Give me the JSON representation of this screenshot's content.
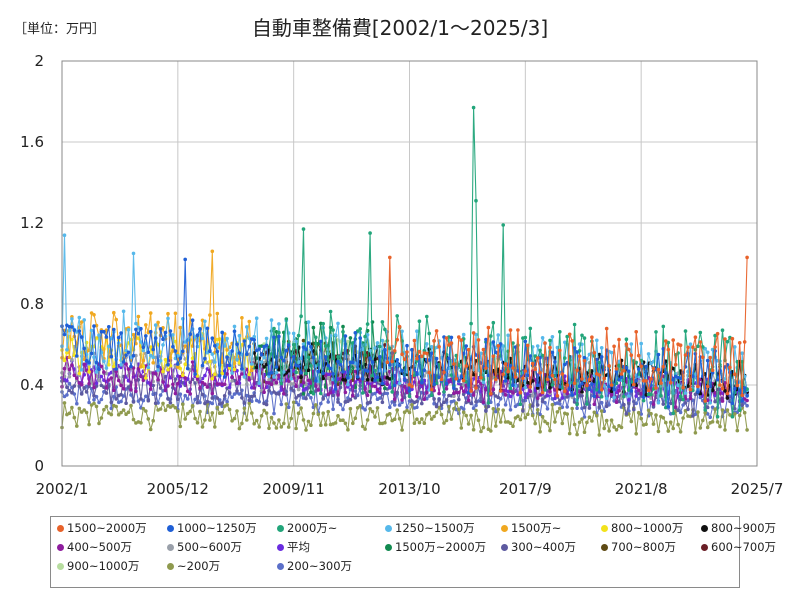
{
  "unit_label": "［単位：万円］",
  "chart_data": {
    "type": "line",
    "title": "自動車整備費[2002/1～2025/3]",
    "xlabel": "",
    "ylabel": "万円",
    "x_start": "2002/1",
    "x_end": "2025/3",
    "ylim": [
      0,
      2
    ],
    "yticks": [
      0,
      0.4,
      0.8,
      1.2,
      1.6,
      2
    ],
    "ytick_labels": [
      "0",
      "0.4",
      "0.8",
      "1.2",
      "1.6",
      "2"
    ],
    "xticks": [
      "2002/1",
      "2005/12",
      "2009/11",
      "2013/10",
      "2017/9",
      "2021/8",
      "2025/7"
    ],
    "grid": true,
    "legend_position": "bottom",
    "series": [
      {
        "name": "1500~2000万",
        "color": "#e8622a",
        "base_early": 0.58,
        "base_late": 0.48,
        "amp": 0.14,
        "start": "2013/1",
        "end": "2025/3",
        "peaks": [
          {
            "date": "2025/3",
            "value": 1.03
          },
          {
            "date": "2013/2",
            "value": 1.03
          }
        ]
      },
      {
        "name": "1000~1250万",
        "color": "#1f5fd6",
        "base_early": 0.6,
        "base_late": 0.42,
        "amp": 0.12,
        "start": "2002/1",
        "end": "2025/3",
        "peaks": [
          {
            "date": "2006/3",
            "value": 1.02
          }
        ]
      },
      {
        "name": "2000万~",
        "color": "#22a57a",
        "base_early": 0.6,
        "base_late": 0.45,
        "amp": 0.18,
        "start": "2009/1",
        "end": "2025/3",
        "peaks": [
          {
            "date": "2015/12",
            "value": 1.77
          },
          {
            "date": "2016/1",
            "value": 1.31
          },
          {
            "date": "2016/12",
            "value": 1.19
          },
          {
            "date": "2010/3",
            "value": 1.17
          },
          {
            "date": "2012/6",
            "value": 1.15
          }
        ]
      },
      {
        "name": "1250~1500万",
        "color": "#56b8ea",
        "base_early": 0.62,
        "base_late": 0.44,
        "amp": 0.13,
        "start": "2002/1",
        "end": "2025/3",
        "peaks": [
          {
            "date": "2002/2",
            "value": 1.14
          },
          {
            "date": "2004/6",
            "value": 1.05
          }
        ]
      },
      {
        "name": "1500万~",
        "color": "#f0a820",
        "base_early": 0.62,
        "base_late": 0.62,
        "amp": 0.13,
        "start": "2002/1",
        "end": "2008/6",
        "peaks": [
          {
            "date": "2007/2",
            "value": 1.06
          }
        ]
      },
      {
        "name": "800~1000万",
        "color": "#f2e21c",
        "base_early": 0.55,
        "base_late": 0.55,
        "amp": 0.1,
        "start": "2002/1",
        "end": "2008/6",
        "peaks": []
      },
      {
        "name": "800~900万",
        "color": "#111111",
        "base_early": 0.55,
        "base_late": 0.42,
        "amp": 0.08,
        "start": "2008/7",
        "end": "2025/3",
        "peaks": []
      },
      {
        "name": "400~500万",
        "color": "#8e1d9e",
        "base_early": 0.45,
        "base_late": 0.37,
        "amp": 0.07,
        "start": "2002/1",
        "end": "2025/3",
        "peaks": []
      },
      {
        "name": "500~600万",
        "color": "#9aa0aa",
        "base_early": 0.5,
        "base_late": 0.4,
        "amp": 0.08,
        "start": "2002/1",
        "end": "2025/3",
        "peaks": []
      },
      {
        "name": "平均",
        "color": "#6a2de0",
        "base_early": 0.46,
        "base_late": 0.37,
        "amp": 0.05,
        "start": "2002/1",
        "end": "2025/3",
        "peaks": []
      },
      {
        "name": "1500万~2000万",
        "color": "#128a50",
        "base_early": 0.55,
        "base_late": 0.55,
        "amp": 0.15,
        "start": "2008/7",
        "end": "2012/12",
        "peaks": []
      },
      {
        "name": "300~400万",
        "color": "#5d5aa0",
        "base_early": 0.4,
        "base_late": 0.33,
        "amp": 0.07,
        "start": "2002/1",
        "end": "2025/3",
        "peaks": []
      },
      {
        "name": "700~800万",
        "color": "#5e4a14",
        "base_early": 0.52,
        "base_late": 0.52,
        "amp": 0.09,
        "start": "2008/7",
        "end": "2012/12",
        "peaks": []
      },
      {
        "name": "600~700万",
        "color": "#6a1e26",
        "base_early": 0.5,
        "base_late": 0.5,
        "amp": 0.08,
        "start": "2008/7",
        "end": "2012/12",
        "peaks": []
      },
      {
        "name": "900~1000万",
        "color": "#b7dd9f",
        "base_early": 0.52,
        "base_late": 0.52,
        "amp": 0.09,
        "start": "2008/7",
        "end": "2012/12",
        "peaks": []
      },
      {
        "name": "~200万",
        "color": "#8f9a4e",
        "base_early": 0.26,
        "base_late": 0.22,
        "amp": 0.06,
        "start": "2002/1",
        "end": "2025/3",
        "peaks": [
          {
            "date": "2002/1",
            "value": 0.19
          }
        ]
      },
      {
        "name": "200~300万",
        "color": "#5b6fc9",
        "base_early": 0.35,
        "base_late": 0.3,
        "amp": 0.06,
        "start": "2002/1",
        "end": "2025/3",
        "peaks": []
      }
    ]
  }
}
